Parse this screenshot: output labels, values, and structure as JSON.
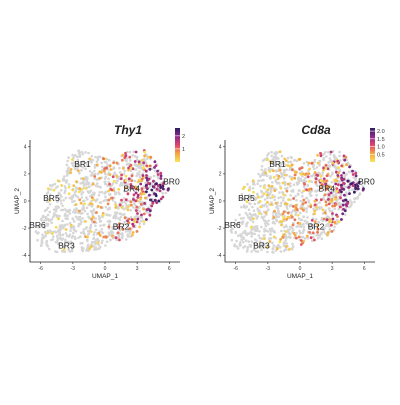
{
  "chart_data": [
    {
      "type": "scatter",
      "title": "Thy1",
      "xlabel": "UMAP_1",
      "ylabel": "UMAP_2",
      "xticks": [
        -6,
        -3,
        0,
        3,
        6
      ],
      "yticks": [
        4,
        2,
        0,
        -2,
        -4
      ],
      "xlim": [
        -7,
        7
      ],
      "ylim": [
        -4.5,
        4.5
      ],
      "colorbar": {
        "ticks": [
          2,
          1
        ],
        "range": [
          0,
          2.6
        ],
        "colors": [
          "#f7e55a",
          "#f4a443",
          "#e0456b",
          "#8b2a8a",
          "#2c1e5e"
        ]
      },
      "clusters": [
        {
          "label": "BR0",
          "x": 6.2,
          "y": 1.2
        },
        {
          "label": "BR1",
          "x": -2.1,
          "y": 2.5
        },
        {
          "label": "BR2",
          "x": 1.5,
          "y": -2.1
        },
        {
          "label": "BR3",
          "x": -3.6,
          "y": -3.5
        },
        {
          "label": "BR4",
          "x": 2.5,
          "y": 0.7
        },
        {
          "label": "BR5",
          "x": -5.0,
          "y": 0.0
        },
        {
          "label": "BR6",
          "x": -6.3,
          "y": -2.0
        }
      ]
    },
    {
      "type": "scatter",
      "title": "Cd8a",
      "xlabel": "UMAP_1",
      "ylabel": "UMAP_2",
      "xticks": [
        -6,
        -3,
        0,
        3,
        6
      ],
      "yticks": [
        4,
        2,
        0,
        -2,
        -4
      ],
      "xlim": [
        -7,
        7
      ],
      "ylim": [
        -4.5,
        4.5
      ],
      "colorbar": {
        "ticks": [
          2.0,
          1.5,
          1.0,
          0.5
        ],
        "range": [
          0,
          2.2
        ],
        "colors": [
          "#f7e55a",
          "#f4a443",
          "#e0456b",
          "#8b2a8a",
          "#2c1e5e"
        ]
      },
      "clusters": [
        {
          "label": "BR0",
          "x": 6.2,
          "y": 1.2
        },
        {
          "label": "BR1",
          "x": -2.1,
          "y": 2.5
        },
        {
          "label": "BR2",
          "x": 1.5,
          "y": -2.1
        },
        {
          "label": "BR3",
          "x": -3.6,
          "y": -3.5
        },
        {
          "label": "BR4",
          "x": 2.5,
          "y": 0.7
        },
        {
          "label": "BR5",
          "x": -5.0,
          "y": 0.0
        },
        {
          "label": "BR6",
          "x": -6.3,
          "y": -2.0
        }
      ]
    }
  ]
}
